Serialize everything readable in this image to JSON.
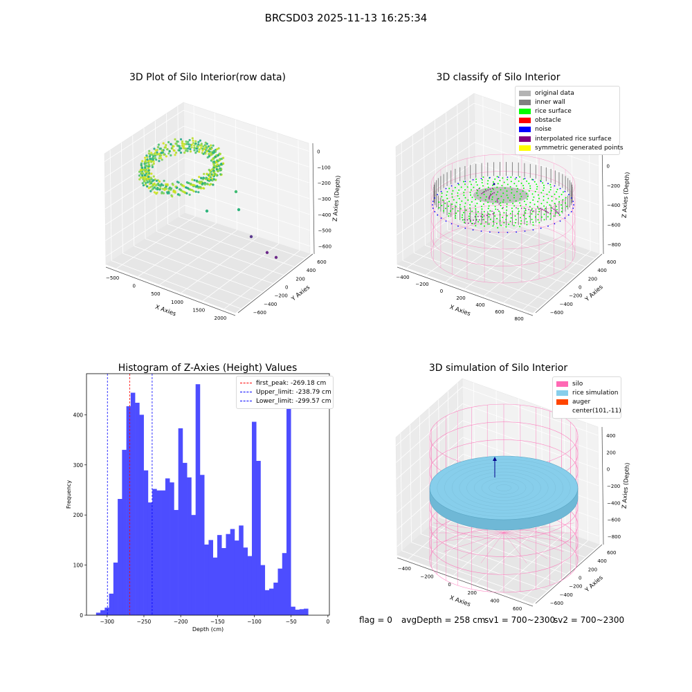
{
  "suptitle": "BRCSD03 2025-11-13 16:25:34",
  "chart_data": [
    {
      "type": "scatter",
      "title": "3D Plot of Silo Interior(row data)",
      "xlabel": "X Axies",
      "ylabel": "Y Axies",
      "zlabel": "Z Axies (Depth)",
      "x_ticks": [
        "−500",
        "0",
        "500",
        "1000",
        "1500",
        "2000"
      ],
      "y_ticks": [
        "−600",
        "−400",
        "−200",
        "0",
        "200",
        "400",
        "600"
      ],
      "z_ticks": [
        "−600",
        "−500",
        "−400",
        "−300",
        "−200",
        "−100",
        "0"
      ],
      "xlim": [
        -600,
        2100
      ],
      "ylim": [
        -650,
        650
      ],
      "zlim": [
        -650,
        50
      ],
      "colormap": "viridis",
      "description_points": "dense ring-shaped point cloud around center, plus a few outlier points along +X"
    },
    {
      "type": "scatter",
      "title": "3D classify of Silo Interior",
      "xlabel": "X Axies",
      "ylabel": "Y Axies",
      "zlabel": "Z Axies (Depth)",
      "x_ticks": [
        "−400",
        "−200",
        "0",
        "200",
        "400",
        "600",
        "800"
      ],
      "y_ticks": [
        "−600",
        "−400",
        "−200",
        "0",
        "200",
        "400",
        "600"
      ],
      "z_ticks": [
        "−800",
        "−600",
        "−400",
        "−200",
        "0",
        "200"
      ],
      "legend": [
        {
          "label": "original data",
          "color": "#b3b3b3"
        },
        {
          "label": "inner wall",
          "color": "#808080"
        },
        {
          "label": "rice surface",
          "color": "#00ff00"
        },
        {
          "label": "obstacle",
          "color": "#ff0000"
        },
        {
          "label": "noise",
          "color": "#0000ff"
        },
        {
          "label": "interpolated rice surface",
          "color": "#800080"
        },
        {
          "label": "symmetric generated points",
          "color": "#ffff00"
        }
      ]
    },
    {
      "type": "bar",
      "title": "Histogram of Z-Axies (Height) Values",
      "xlabel": "Depth (cm)",
      "ylabel": "Frequency",
      "x_ticks": [
        -300,
        -250,
        -200,
        -150,
        -100,
        -50,
        0
      ],
      "y_ticks": [
        0,
        100,
        200,
        300,
        400
      ],
      "xlim": [
        -328,
        2
      ],
      "ylim": [
        0,
        482
      ],
      "bin_start": -315,
      "bin_width": 5.88,
      "values": [
        5,
        10,
        15,
        43,
        105,
        232,
        330,
        417,
        444,
        424,
        400,
        289,
        225,
        252,
        249,
        249,
        273,
        265,
        210,
        373,
        304,
        275,
        200,
        461,
        280,
        141,
        150,
        115,
        160,
        134,
        162,
        172,
        149,
        179,
        135,
        118,
        386,
        308,
        100,
        50,
        53,
        65,
        93,
        124,
        449,
        17,
        11,
        12,
        13
      ],
      "bar_color": "#4d4dff",
      "vlines": [
        {
          "label": "first_peak: -269.18 cm",
          "x": -269.18,
          "color": "#ff0000"
        },
        {
          "label": "Upper_limit: -238.79 cm",
          "x": -238.79,
          "color": "#0000ff"
        },
        {
          "label": "Lower_limit: -299.57 cm",
          "x": -299.57,
          "color": "#0000ff"
        }
      ]
    },
    {
      "type": "scatter",
      "title": "3D simulation of Silo Interior",
      "xlabel": "X Axies",
      "ylabel": "Y Axies",
      "zlabel": "Z Axies (Depth)",
      "x_ticks": [
        "−400",
        "−200",
        "0",
        "200",
        "400",
        "600"
      ],
      "y_ticks": [
        "−600",
        "−400",
        "−200",
        "0",
        "200",
        "400",
        "600"
      ],
      "z_ticks": [
        "−800",
        "−600",
        "−400",
        "−200",
        "0",
        "200",
        "400"
      ],
      "legend": [
        {
          "label": "silo",
          "color": "#ff69b4"
        },
        {
          "label": "rice simulation",
          "color": "#87ceeb"
        },
        {
          "label": "auger",
          "color": "#ff4500"
        },
        {
          "label": "center(101,-11)",
          "color": ""
        }
      ]
    }
  ],
  "footer": {
    "flag": "flag = 0",
    "avg": "avgDepth = 258 cm",
    "sv1": "sv1 = 700~2300",
    "sv2": "sv2 = 700~2300"
  },
  "colors": {
    "pane": "#f2f2f2",
    "grid": "#dcdcdc",
    "silo_pink": "#ff69b4",
    "rice_blue": "#87ceeb"
  }
}
